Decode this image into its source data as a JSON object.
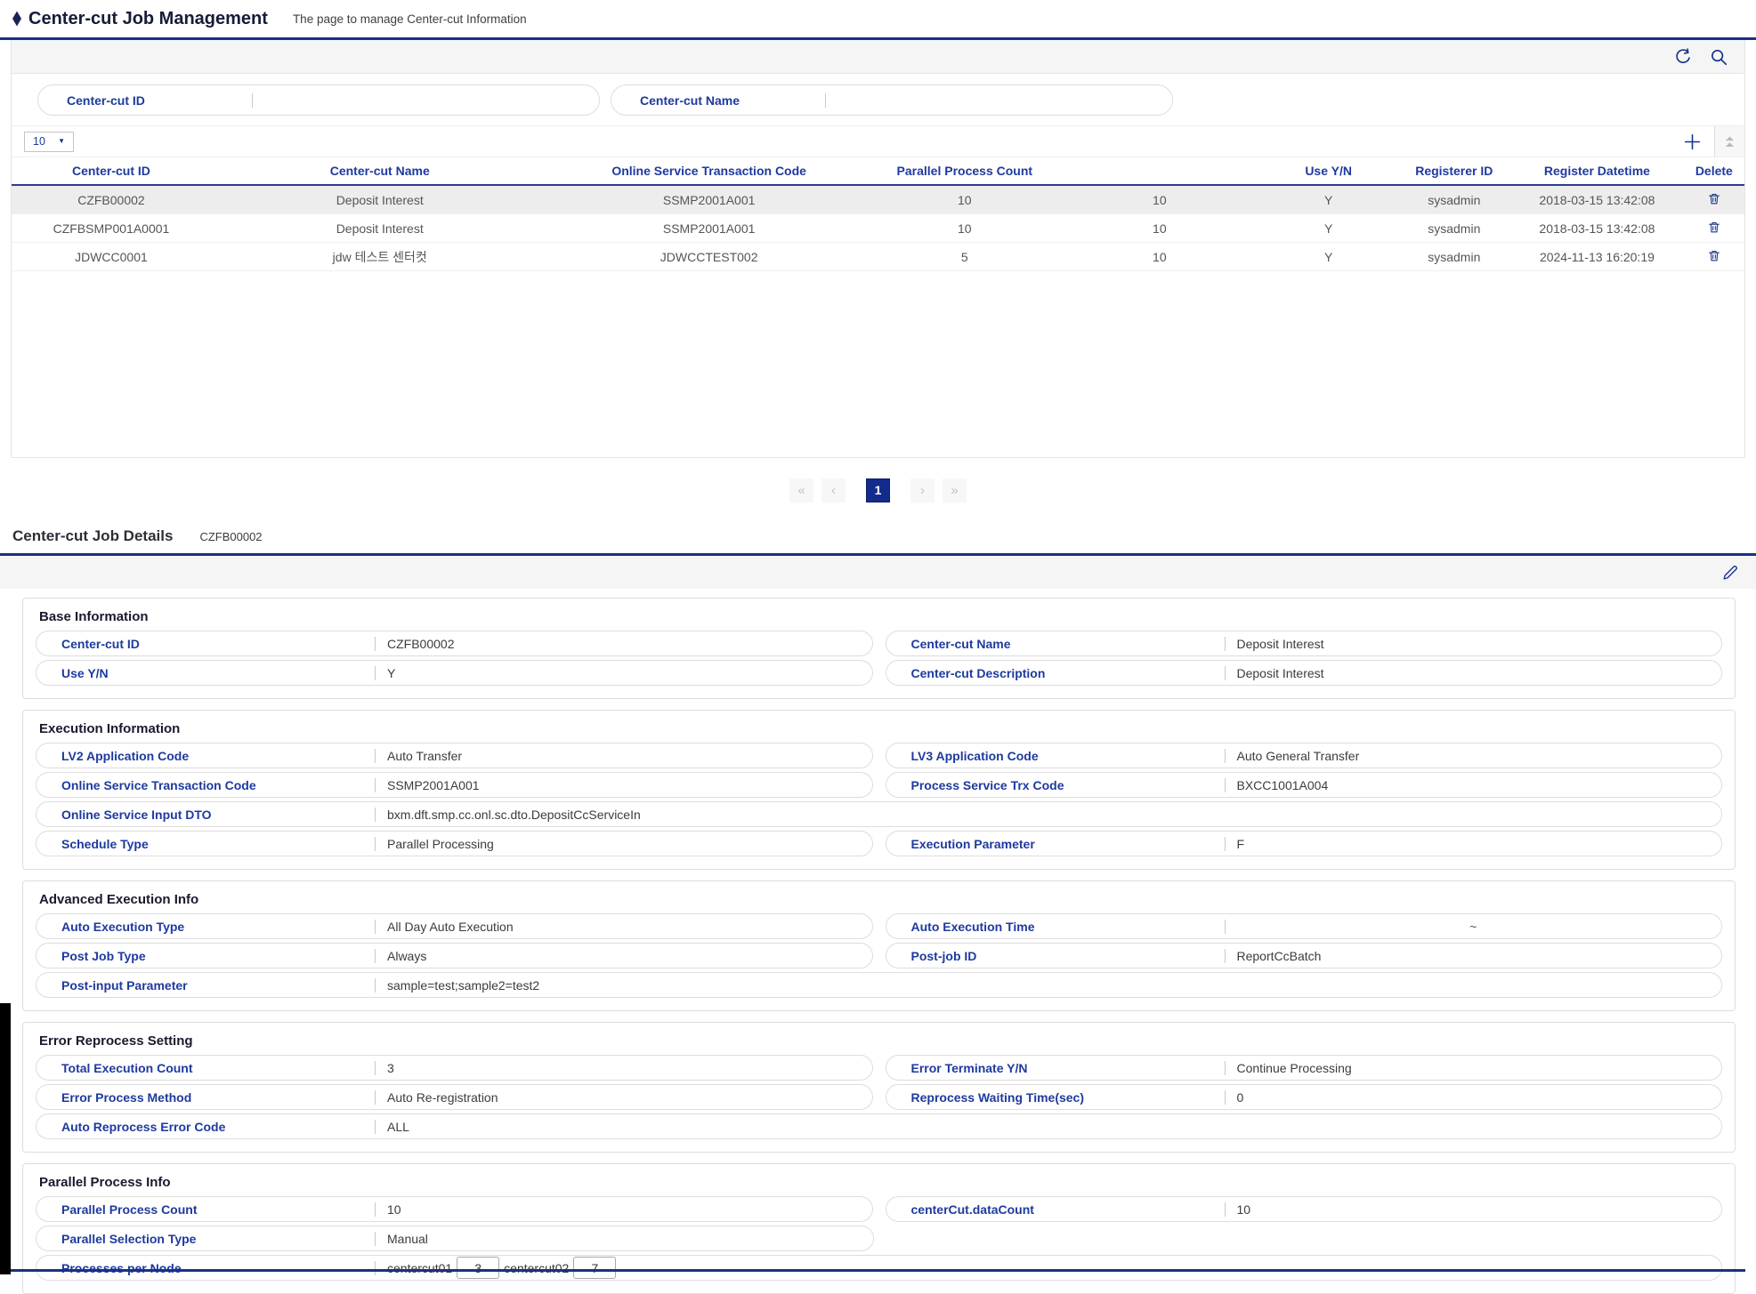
{
  "header": {
    "title": "Center-cut Job Management",
    "subtitle": "The page to manage Center-cut Information"
  },
  "search": {
    "fields": [
      {
        "label": "Center-cut ID",
        "value": ""
      },
      {
        "label": "Center-cut Name",
        "value": ""
      }
    ]
  },
  "grid": {
    "page_size": "10",
    "columns": [
      "Center-cut ID",
      "Center-cut Name",
      "Online Service Transaction Code",
      "Parallel Process Count",
      "",
      "Use Y/N",
      "Registerer ID",
      "Register Datetime",
      "Delete"
    ],
    "rows": [
      {
        "selected": true,
        "cells": [
          "CZFB00002",
          "Deposit Interest",
          "SSMP2001A001",
          "10",
          "10",
          "Y",
          "sysadmin",
          "2018-03-15 13:42:08"
        ]
      },
      {
        "selected": false,
        "cells": [
          "CZFBSMP001A0001",
          "Deposit Interest",
          "SSMP2001A001",
          "10",
          "10",
          "Y",
          "sysadmin",
          "2018-03-15 13:42:08"
        ]
      },
      {
        "selected": false,
        "cells": [
          "JDWCC0001",
          "jdw 테스트 센터컷",
          "JDWCCTEST002",
          "5",
          "10",
          "Y",
          "sysadmin",
          "2024-11-13 16:20:19"
        ]
      }
    ],
    "pagination": {
      "first": "«",
      "prev": "‹",
      "pages": [
        "1"
      ],
      "active_page": "1",
      "next": "›",
      "last": "»"
    }
  },
  "details": {
    "title": "Center-cut Job Details",
    "code": "CZFB00002",
    "panels": [
      {
        "title": "Base Information",
        "rows": [
          [
            {
              "label": "Center-cut ID",
              "value": "CZFB00002"
            },
            {
              "label": "Center-cut Name",
              "value": "Deposit Interest"
            }
          ],
          [
            {
              "label": "Use Y/N",
              "value": "Y"
            },
            {
              "label": "Center-cut Description",
              "value": "Deposit Interest"
            }
          ]
        ]
      },
      {
        "title": "Execution Information",
        "rows": [
          [
            {
              "label": "LV2 Application Code",
              "value": "Auto Transfer"
            },
            {
              "label": "LV3 Application Code",
              "value": "Auto General Transfer"
            }
          ],
          [
            {
              "label": "Online Service Transaction Code",
              "value": "SSMP2001A001"
            },
            {
              "label": "Process Service Trx Code",
              "value": "BXCC1001A004"
            }
          ],
          [
            {
              "label": "Online Service Input DTO",
              "value": "bxm.dft.smp.cc.onl.sc.dto.DepositCcServiceIn",
              "span": 2
            }
          ],
          [
            {
              "label": "Schedule Type",
              "value": "Parallel Processing"
            },
            {
              "label": "Execution Parameter",
              "value": "F"
            }
          ]
        ]
      },
      {
        "title": "Advanced Execution Info",
        "rows": [
          [
            {
              "label": "Auto Execution Type",
              "value": "All Day Auto Execution"
            },
            {
              "label": "Auto Execution Time",
              "value": "",
              "type": "range",
              "tilde": "~"
            }
          ],
          [
            {
              "label": "Post Job Type",
              "value": "Always"
            },
            {
              "label": "Post-job ID",
              "value": "ReportCcBatch"
            }
          ],
          [
            {
              "label": "Post-input Parameter",
              "value": "sample=test;sample2=test2",
              "span": 2
            }
          ]
        ]
      },
      {
        "title": "Error Reprocess Setting",
        "rows": [
          [
            {
              "label": "Total Execution Count",
              "value": "3"
            },
            {
              "label": "Error Terminate Y/N",
              "value": "Continue Processing"
            }
          ],
          [
            {
              "label": "Error Process Method",
              "value": "Auto Re-registration"
            },
            {
              "label": "Reprocess Waiting Time(sec)",
              "value": "0"
            }
          ],
          [
            {
              "label": "Auto Reprocess Error Code",
              "value": "ALL",
              "span": 2
            }
          ]
        ]
      },
      {
        "title": "Parallel Process Info",
        "rows": [
          [
            {
              "label": "Parallel Process Count",
              "value": "10"
            },
            {
              "label": "centerCut.dataCount",
              "value": "10"
            }
          ],
          [
            {
              "label": "Parallel Selection Type",
              "value": "Manual"
            },
            {
              "type": "empty"
            }
          ],
          [
            {
              "label": "Processes per Node",
              "type": "nodes",
              "span": 2,
              "nodes": [
                {
                  "name": "centercut01",
                  "count": "3"
                },
                {
                  "name": "centercut02",
                  "count": "7"
                }
              ]
            }
          ]
        ]
      }
    ]
  },
  "icons": [
    "refresh-icon",
    "search-icon",
    "plus-icon",
    "collapse-up-icon",
    "caret-down-icon",
    "trash-icon",
    "pencil-icon",
    "diamond-bullet-icon"
  ],
  "colors": {
    "accent_navy": "#1b2f87",
    "label_blue": "#1e3a9f",
    "selected_row": "#ededed",
    "active_page_bg": "#132c8c"
  }
}
